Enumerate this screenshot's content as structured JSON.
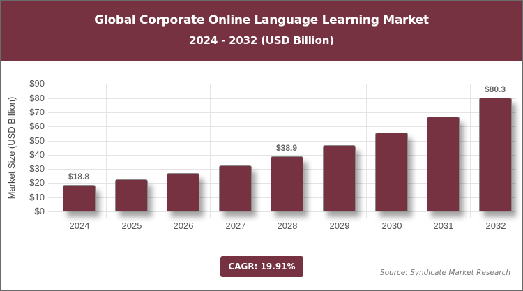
{
  "header": {
    "title": "Global Corporate Online Language Learning Market",
    "subtitle": "2024 - 2032 (USD Billion)"
  },
  "axis": {
    "ylabel": "Market Size (USD Billion)",
    "yticks": [
      "$0",
      "$10",
      "$20",
      "$30",
      "$40",
      "$50",
      "$60",
      "$70",
      "$80",
      "$90"
    ],
    "xticks": [
      "2024",
      "2025",
      "2026",
      "2027",
      "2028",
      "2029",
      "2030",
      "2031",
      "2032"
    ]
  },
  "bar_labels": {
    "b0": "$18.8",
    "b4": "$38.9",
    "b8": "$80.3"
  },
  "footer": {
    "cagr": "CAGR: 19.91%",
    "source": "Source: Syndicate Market Research"
  },
  "colors": {
    "brand": "#763241",
    "bar": "#763241"
  },
  "chart_data": {
    "type": "bar",
    "title": "Global Corporate Online Language Learning Market",
    "subtitle": "2024 - 2032 (USD Billion)",
    "categories": [
      "2024",
      "2025",
      "2026",
      "2027",
      "2028",
      "2029",
      "2030",
      "2031",
      "2032"
    ],
    "values": [
      18.8,
      22.5,
      27.0,
      32.4,
      38.9,
      46.6,
      55.9,
      67.0,
      80.3
    ],
    "labeled_values": {
      "2024": "$18.8",
      "2028": "$38.9",
      "2032": "$80.3"
    },
    "xlabel": "",
    "ylabel": "Market Size (USD Billion)",
    "ylim": [
      0,
      90
    ],
    "ytick_step": 10,
    "grid": true,
    "legend": null,
    "annotations": [
      "CAGR: 19.91%",
      "Source: Syndicate Market Research"
    ]
  }
}
